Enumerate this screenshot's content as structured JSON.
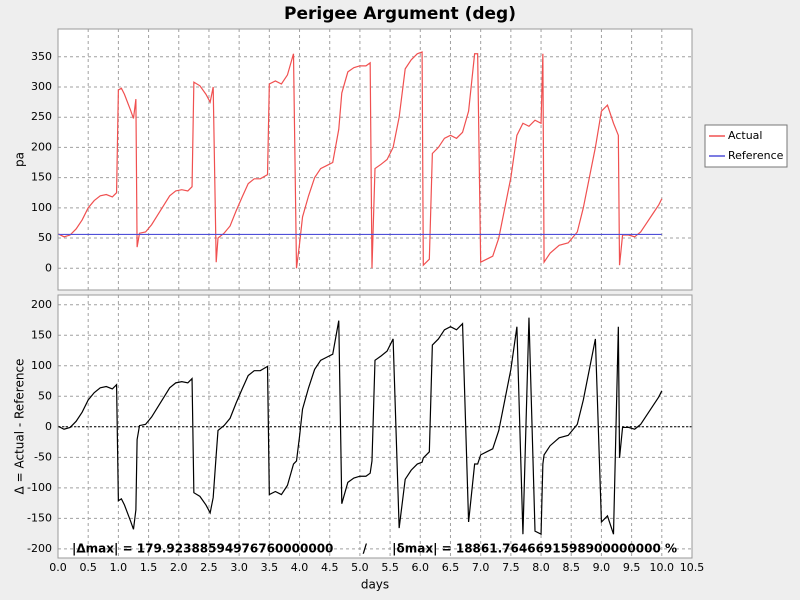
{
  "chart_data": [
    {
      "type": "line",
      "title": "Perigee Argument (deg)",
      "ylabel": "pa",
      "x": [
        0,
        0.1,
        0.2,
        0.3,
        0.4,
        0.5,
        0.6,
        0.7,
        0.8,
        0.9,
        0.97,
        1.0,
        1.05,
        1.1,
        1.2,
        1.25,
        1.29,
        1.31,
        1.35,
        1.45,
        1.55,
        1.65,
        1.75,
        1.85,
        1.95,
        2.05,
        2.15,
        2.22,
        2.25,
        2.35,
        2.45,
        2.52,
        2.57,
        2.62,
        2.65,
        2.75,
        2.85,
        2.95,
        3.05,
        3.15,
        3.25,
        3.35,
        3.47,
        3.5,
        3.6,
        3.7,
        3.8,
        3.9,
        3.95,
        4.0,
        4.05,
        4.15,
        4.25,
        4.35,
        4.45,
        4.55,
        4.65,
        4.7,
        4.8,
        4.9,
        5.0,
        5.1,
        5.17,
        5.2,
        5.25,
        5.35,
        5.45,
        5.55,
        5.65,
        5.75,
        5.85,
        5.95,
        6.03,
        6.05,
        6.15,
        6.2,
        6.3,
        6.4,
        6.5,
        6.6,
        6.7,
        6.8,
        6.9,
        6.95,
        7.0,
        7.1,
        7.2,
        7.3,
        7.4,
        7.5,
        7.6,
        7.7,
        7.8,
        7.9,
        8.0,
        8.03,
        8.05,
        8.15,
        8.3,
        8.45,
        8.6,
        8.7,
        8.8,
        8.9,
        9.0,
        9.1,
        9.2,
        9.28,
        9.3,
        9.35,
        9.45,
        9.55,
        9.65,
        9.75,
        9.85,
        9.95,
        10.0
      ],
      "series": [
        {
          "name": "Actual",
          "color": "#f05050",
          "values": [
            57,
            52,
            55,
            65,
            80,
            100,
            112,
            120,
            122,
            118,
            125,
            295,
            298,
            288,
            262,
            248,
            280,
            35,
            58,
            60,
            72,
            88,
            104,
            120,
            128,
            130,
            128,
            135,
            308,
            302,
            288,
            275,
            300,
            10,
            50,
            58,
            70,
            95,
            118,
            140,
            148,
            148,
            155,
            305,
            310,
            305,
            320,
            355,
            0,
            40,
            85,
            120,
            150,
            165,
            170,
            175,
            230,
            290,
            325,
            332,
            335,
            335,
            340,
            0,
            165,
            172,
            180,
            200,
            250,
            330,
            345,
            355,
            358,
            5,
            15,
            190,
            200,
            215,
            220,
            215,
            225,
            260,
            355,
            355,
            10,
            15,
            20,
            50,
            100,
            150,
            220,
            240,
            235,
            245,
            240,
            355,
            10,
            25,
            38,
            42,
            60,
            100,
            150,
            200,
            260,
            270,
            240,
            220,
            5,
            55,
            55,
            52,
            60,
            75,
            90,
            105,
            115
          ]
        },
        {
          "name": "Reference",
          "color": "#5050d8",
          "x": [
            0,
            10.0
          ],
          "values": [
            56,
            56
          ]
        }
      ],
      "xlim": [
        0,
        10.5
      ],
      "ylim": [
        -36,
        396
      ],
      "yticks": [
        0,
        50,
        100,
        150,
        200,
        250,
        300,
        350
      ],
      "grid": true,
      "legend": "right"
    },
    {
      "type": "line",
      "ylabel": "Δ = Actual - Reference",
      "xlabel": "days",
      "x": [
        0,
        0.1,
        0.2,
        0.3,
        0.4,
        0.5,
        0.6,
        0.7,
        0.8,
        0.9,
        0.97,
        1.0,
        1.05,
        1.1,
        1.2,
        1.25,
        1.29,
        1.31,
        1.35,
        1.45,
        1.55,
        1.65,
        1.75,
        1.85,
        1.95,
        2.05,
        2.15,
        2.22,
        2.25,
        2.35,
        2.45,
        2.52,
        2.57,
        2.62,
        2.65,
        2.75,
        2.85,
        2.95,
        3.05,
        3.15,
        3.25,
        3.35,
        3.47,
        3.5,
        3.6,
        3.7,
        3.8,
        3.9,
        3.95,
        4.0,
        4.05,
        4.15,
        4.25,
        4.35,
        4.45,
        4.55,
        4.65,
        4.7,
        4.8,
        4.9,
        5.0,
        5.1,
        5.17,
        5.2,
        5.25,
        5.35,
        5.45,
        5.55,
        5.65,
        5.75,
        5.85,
        5.95,
        6.03,
        6.05,
        6.15,
        6.2,
        6.3,
        6.4,
        6.5,
        6.6,
        6.7,
        6.8,
        6.9,
        6.95,
        7.0,
        7.1,
        7.2,
        7.3,
        7.4,
        7.5,
        7.6,
        7.7,
        7.8,
        7.9,
        8.0,
        8.03,
        8.05,
        8.15,
        8.3,
        8.45,
        8.6,
        8.7,
        8.8,
        8.9,
        9.0,
        9.1,
        9.2,
        9.28,
        9.3,
        9.35,
        9.45,
        9.55,
        9.65,
        9.75,
        9.85,
        9.95,
        10.0
      ],
      "series": [
        {
          "color": "#000000",
          "values": [
            1,
            -4,
            -1,
            9,
            24,
            44,
            56,
            64,
            66,
            62,
            69,
            -121,
            -118,
            -128,
            -154,
            -168,
            -136,
            -21,
            2,
            4,
            16,
            32,
            48,
            64,
            72,
            74,
            72,
            79,
            -108,
            -114,
            -128,
            -141,
            -116,
            -46,
            -6,
            2,
            14,
            39,
            62,
            84,
            92,
            92,
            99,
            -111,
            -106,
            -111,
            -96,
            -61,
            -56,
            -16,
            29,
            64,
            94,
            109,
            114,
            119,
            174,
            -126,
            -91,
            -84,
            -81,
            -81,
            -76,
            -56,
            109,
            116,
            124,
            144,
            -166,
            -86,
            -71,
            -61,
            -58,
            -51,
            -41,
            134,
            144,
            159,
            164,
            159,
            169,
            -156,
            -61,
            -61,
            -46,
            -41,
            -36,
            -6,
            44,
            94,
            164,
            -176,
            179,
            -171,
            -176,
            -61,
            -46,
            -31,
            -18,
            -14,
            4,
            44,
            94,
            144,
            -156,
            -146,
            -176,
            164,
            -51,
            -1,
            -1,
            -4,
            4,
            19,
            34,
            49,
            59
          ]
        }
      ],
      "xlim": [
        0,
        10.5
      ],
      "xticks": [
        {
          "value": 0,
          "label": "0.0"
        },
        0.5,
        {
          "value": 1,
          "label": "1.0"
        },
        1.5,
        {
          "value": 2,
          "label": "2.0"
        },
        2.5,
        {
          "value": 3,
          "label": "3.0"
        },
        3.5,
        {
          "value": 4,
          "label": "4.0"
        },
        4.5,
        {
          "value": 5,
          "label": "5.0"
        },
        5.5,
        {
          "value": 6,
          "label": "6.0"
        },
        6.5,
        {
          "value": 7,
          "label": "7.0"
        },
        7.5,
        {
          "value": 8,
          "label": "8.0"
        },
        8.5,
        {
          "value": 9,
          "label": "9.0"
        },
        9.5,
        {
          "value": 10,
          "label": "10.0"
        },
        10.5
      ],
      "ylim": [
        -215,
        216
      ],
      "yticks": [
        -200,
        -150,
        -100,
        -50,
        0,
        50,
        100,
        150,
        200
      ],
      "grid": true,
      "zero_line": true,
      "annotation": "|Δmax| = 179.92388594976760000000       /      |δmax| = 18861.7646691598900000000 %"
    }
  ]
}
